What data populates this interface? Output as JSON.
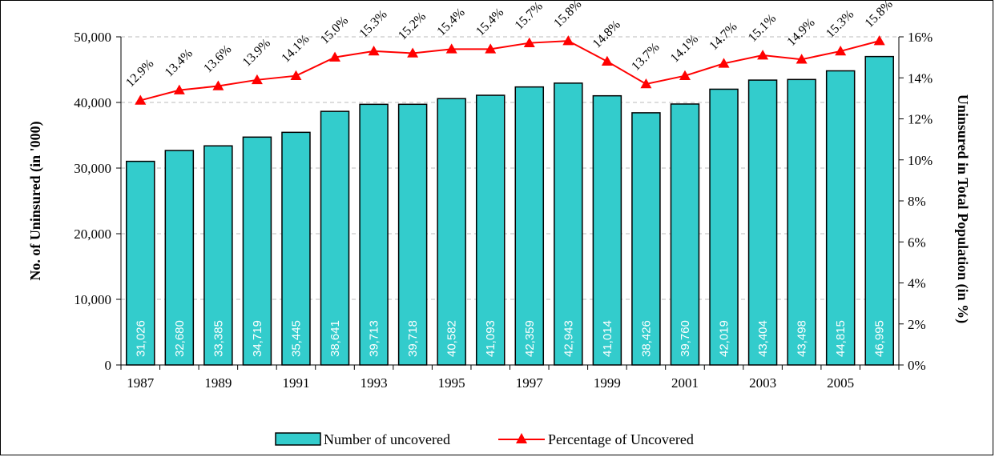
{
  "chart_data": {
    "type": "bar",
    "categories": [
      "1987",
      "1988",
      "1989",
      "1990",
      "1991",
      "1992",
      "1993",
      "1994",
      "1995",
      "1996",
      "1997",
      "1998",
      "1999",
      "2000",
      "2001",
      "2002",
      "2003",
      "2004",
      "2005",
      "2006"
    ],
    "x_tick_labels": [
      "1987",
      "",
      "1989",
      "",
      "1991",
      "",
      "1993",
      "",
      "1995",
      "",
      "1997",
      "",
      "1999",
      "",
      "2001",
      "",
      "2003",
      "",
      "2005",
      ""
    ],
    "series": [
      {
        "name": "Number of uncovered",
        "type": "bar",
        "axis": "left",
        "values": [
          31026,
          32680,
          33385,
          34719,
          35445,
          38641,
          39713,
          39718,
          40582,
          41093,
          42359,
          42943,
          41014,
          38426,
          39760,
          42019,
          43404,
          43498,
          44815,
          46995
        ],
        "labels": [
          "31,026",
          "32,680",
          "33,385",
          "34,719",
          "35,445",
          "38,641",
          "39,713",
          "39,718",
          "40,582",
          "41,093",
          "42,359",
          "42,943",
          "41,014",
          "38,426",
          "39,760",
          "42,019",
          "43,404",
          "43,498",
          "44,815",
          "46,995"
        ]
      },
      {
        "name": "Percentage of Uncovered",
        "type": "line",
        "axis": "right",
        "values": [
          12.9,
          13.4,
          13.6,
          13.9,
          14.1,
          15.0,
          15.3,
          15.2,
          15.4,
          15.4,
          15.7,
          15.8,
          14.8,
          13.7,
          14.1,
          14.7,
          15.1,
          14.9,
          15.3,
          15.8
        ],
        "labels": [
          "12.9%",
          "13.4%",
          "13.6%",
          "13.9%",
          "14.1%",
          "15.0%",
          "15.3%",
          "15.2%",
          "15.4%",
          "15.4%",
          "15.7%",
          "15.8%",
          "14.8%",
          "13.7%",
          "14.1%",
          "14.7%",
          "15.1%",
          "14.9%",
          "15.3%",
          "15.8%"
        ]
      }
    ],
    "ylabel": "No. of Uninsured (in '000)",
    "y2label": "Uninsured in Total Population (in %)",
    "ylim": [
      0,
      50000
    ],
    "y2lim": [
      0,
      16
    ],
    "y_ticks": [
      0,
      10000,
      20000,
      30000,
      40000,
      50000
    ],
    "y_tick_labels": [
      "0",
      "10,000",
      "20,000",
      "30,000",
      "40,000",
      "50,000"
    ],
    "y2_ticks": [
      0,
      2,
      4,
      6,
      8,
      10,
      12,
      14,
      16
    ],
    "y2_tick_labels": [
      "0%",
      "2%",
      "4%",
      "6%",
      "8%",
      "10%",
      "12%",
      "14%",
      "16%"
    ],
    "grid": "dashed horizontal",
    "legend_position": "bottom",
    "colors": {
      "bar_fill": "#33CCCC",
      "bar_stroke": "#000000",
      "line": "#FF0000",
      "grid": "#BBBBBB",
      "bar_label": "#FFFFFF"
    }
  }
}
